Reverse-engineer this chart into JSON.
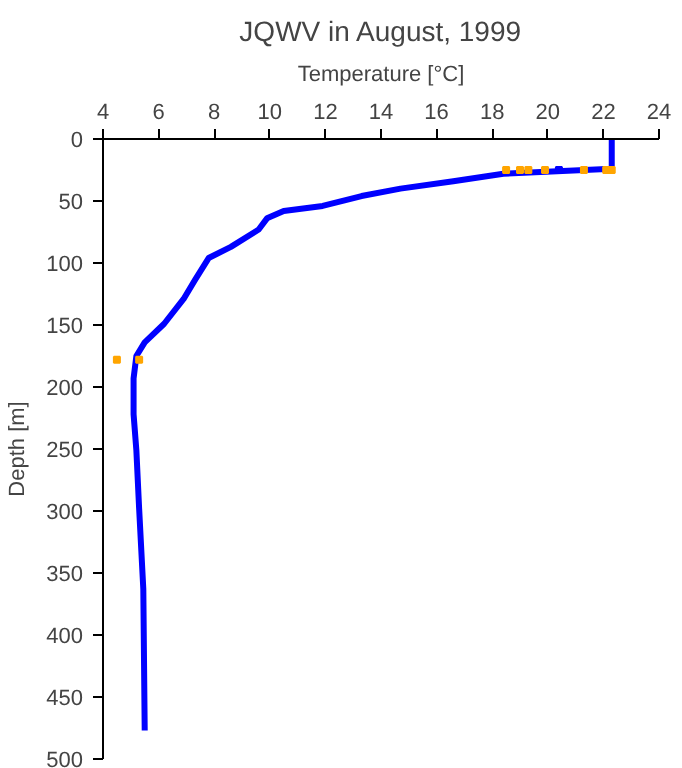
{
  "chart_data": {
    "type": "line",
    "title": "JQWV in August, 1999",
    "xlabel": "Temperature [°C]",
    "ylabel": "Depth [m]",
    "xlim": [
      4,
      24
    ],
    "xticks": [
      4,
      6,
      8,
      10,
      12,
      14,
      16,
      18,
      20,
      22,
      24
    ],
    "ylim": [
      500,
      0
    ],
    "yticks": [
      0,
      50,
      100,
      150,
      200,
      250,
      300,
      350,
      400,
      450,
      500
    ],
    "grid": false,
    "line_style": "solid",
    "series": [
      {
        "color": "#0000ff",
        "marker": "none",
        "x": [
          22.3,
          22.3,
          22.3,
          18.4,
          16.6,
          14.7,
          13.3,
          11.9,
          10.5,
          9.9,
          9.6,
          8.6,
          7.8,
          7.3,
          6.9,
          6.2,
          5.5,
          5.2,
          5.1,
          5.1,
          5.2,
          5.3,
          5.45,
          5.5
        ],
        "values": [
          0,
          12,
          24,
          28,
          34,
          40,
          46,
          54,
          58,
          64,
          73,
          87,
          96,
          114,
          129,
          149,
          164,
          175,
          193,
          222,
          251,
          298,
          363,
          477
        ]
      },
      {
        "type": "scatter",
        "color": "#ffa500",
        "marker": "square",
        "x": [
          18.5,
          19.0,
          19.3,
          19.9,
          21.3,
          22.1,
          22.3,
          4.5,
          5.3
        ],
        "values": [
          25,
          25,
          25,
          25,
          25,
          25,
          25,
          178,
          178
        ]
      },
      {
        "type": "scatter",
        "color": "#0000ff",
        "marker": "square",
        "x": [
          20.4
        ],
        "values": [
          25
        ]
      }
    ]
  }
}
